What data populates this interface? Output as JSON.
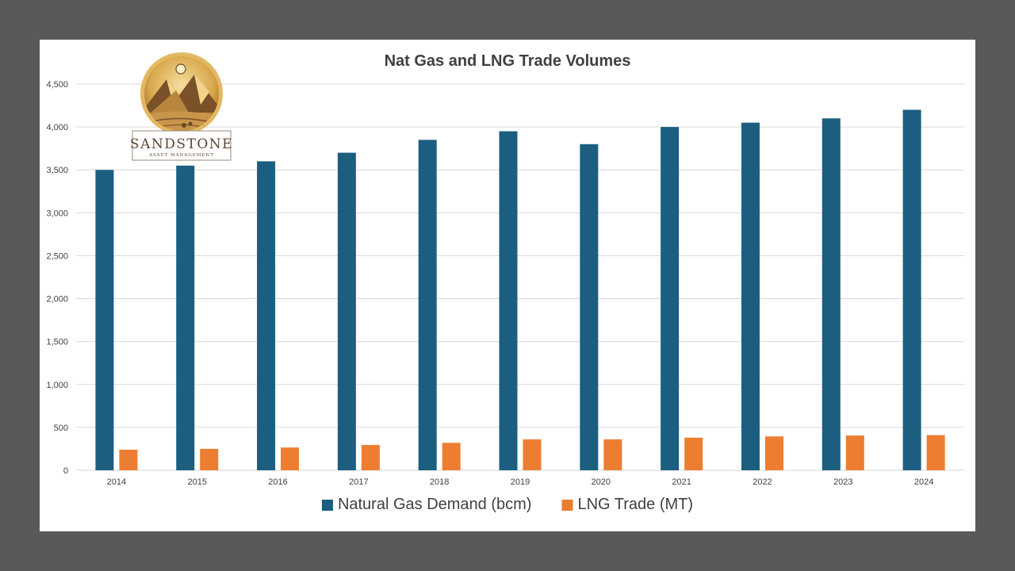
{
  "logo": {
    "name": "SANDSTONE",
    "tagline": "ASSET MANAGEMENT"
  },
  "colors": {
    "background": "#595959",
    "panel": "#ffffff",
    "demand": "#1b5e80",
    "lng": "#ed7d31",
    "text": "#404040",
    "grid": "#d9d9d9"
  },
  "chart_data": {
    "type": "bar",
    "title": "Nat Gas and LNG Trade Volumes",
    "xlabel": "",
    "ylabel": "",
    "categories": [
      "2014",
      "2015",
      "2016",
      "2017",
      "2018",
      "2019",
      "2020",
      "2021",
      "2022",
      "2023",
      "2024"
    ],
    "series": [
      {
        "name": "Natural Gas Demand (bcm)",
        "color": "#1b5e80",
        "values": [
          3500,
          3550,
          3600,
          3700,
          3850,
          3950,
          3800,
          4000,
          4050,
          4100,
          4200
        ]
      },
      {
        "name": "LNG Trade (MT)",
        "color": "#ed7d31",
        "values": [
          240,
          250,
          265,
          295,
          320,
          360,
          360,
          380,
          395,
          405,
          410
        ]
      }
    ],
    "ylim": [
      0,
      4500
    ],
    "yticks": [
      0,
      500,
      1000,
      1500,
      2000,
      2500,
      3000,
      3500,
      4000,
      4500
    ],
    "ytick_labels": [
      "0",
      "500",
      "1,000",
      "1,500",
      "2,000",
      "2,500",
      "3,000",
      "3,500",
      "4,000",
      "4,500"
    ],
    "grid": true,
    "legend_position": "bottom"
  }
}
